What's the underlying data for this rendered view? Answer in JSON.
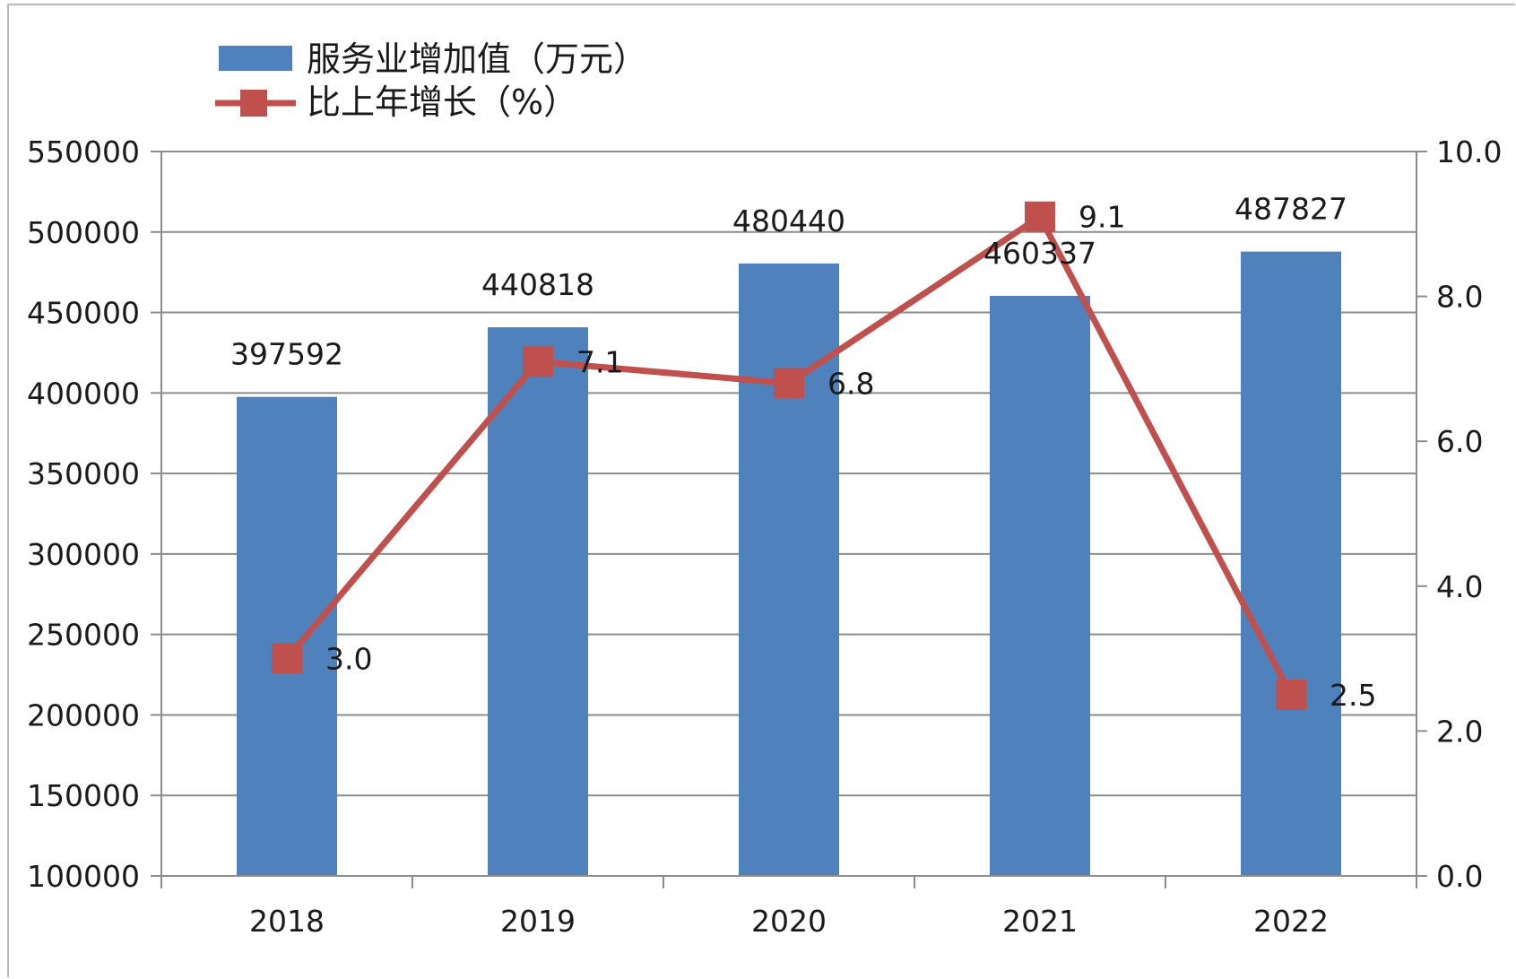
{
  "chart_data": {
    "type": "bar+line",
    "categories": [
      "2018",
      "2019",
      "2020",
      "2021",
      "2022"
    ],
    "series": [
      {
        "name": "服务业增加值（万元）",
        "type": "bar",
        "axis": "left",
        "color": "#4f81bd",
        "values": [
          397592,
          440818,
          480440,
          460337,
          487827
        ]
      },
      {
        "name": "比上年增长（%）",
        "type": "line",
        "axis": "right",
        "color": "#c0504d",
        "values": [
          3.0,
          7.1,
          6.8,
          9.1,
          2.5
        ],
        "labels": [
          "3.0",
          "7.1",
          "6.8",
          "9.1",
          "2.5"
        ]
      }
    ],
    "y_left": {
      "range": [
        100000,
        550000
      ],
      "ticks": [
        "100000",
        "150000",
        "200000",
        "250000",
        "300000",
        "350000",
        "400000",
        "450000",
        "500000",
        "550000"
      ]
    },
    "y_right": {
      "range": [
        0,
        10
      ],
      "ticks": [
        "0.0",
        "2.0",
        "4.0",
        "6.0",
        "8.0",
        "10.0"
      ]
    },
    "grid": true,
    "legend_position": "top-left"
  }
}
